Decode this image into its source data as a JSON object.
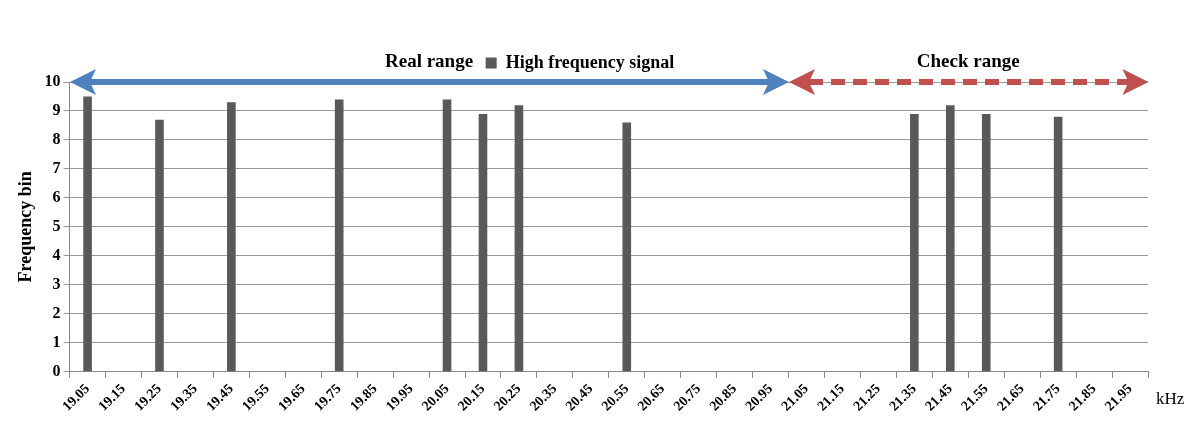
{
  "chart_data": {
    "type": "bar",
    "categories": [
      "19.05",
      "19.15",
      "19.25",
      "19.35",
      "19.45",
      "19.55",
      "19.65",
      "19.75",
      "19.85",
      "19.95",
      "20.05",
      "20.15",
      "20.25",
      "20.35",
      "20.45",
      "20.55",
      "20.65",
      "20.75",
      "20.85",
      "20.95",
      "21.05",
      "21.15",
      "21.25",
      "21.35",
      "21.45",
      "21.55",
      "21.65",
      "21.75",
      "21.85",
      "21.95"
    ],
    "series": [
      {
        "name": "High frequency signal",
        "color": "#595959",
        "values": [
          9.5,
          null,
          8.7,
          null,
          9.3,
          null,
          null,
          9.4,
          null,
          null,
          9.4,
          8.9,
          9.2,
          null,
          null,
          8.6,
          null,
          null,
          null,
          null,
          null,
          null,
          null,
          8.9,
          9.2,
          8.9,
          null,
          8.8,
          null,
          null
        ]
      }
    ],
    "xlabel": "kHz",
    "ylabel": "Frequency bin",
    "ylim": [
      0,
      10
    ],
    "yticks": [
      0,
      1,
      2,
      3,
      4,
      5,
      6,
      7,
      8,
      9,
      10
    ],
    "annotations": [
      "Real range",
      "Check range"
    ],
    "grid": "y",
    "legend": "top"
  }
}
